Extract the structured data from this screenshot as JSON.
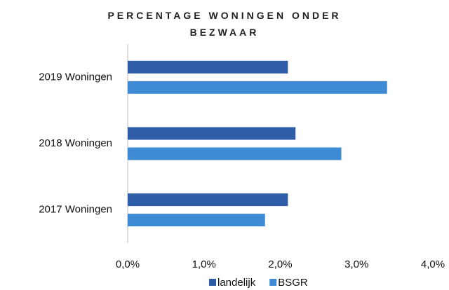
{
  "chart_data": {
    "type": "bar",
    "orientation": "horizontal",
    "title": "PERCENTAGE WONINGEN ONDER BEZWAAR",
    "categories": [
      "2019 Woningen",
      "2018 Woningen",
      "2017 Woningen"
    ],
    "series": [
      {
        "name": "landelijk",
        "color": "#2f5ea8",
        "values": [
          2.1,
          2.2,
          2.1
        ]
      },
      {
        "name": "BSGR",
        "color": "#3e8ad4",
        "values": [
          3.4,
          2.8,
          1.8
        ]
      }
    ],
    "xlim": [
      0,
      4
    ],
    "xticks": [
      {
        "value": 0,
        "label": "0,0%"
      },
      {
        "value": 1,
        "label": "1,0%"
      },
      {
        "value": 2,
        "label": "2,0%"
      },
      {
        "value": 3,
        "label": "3,0%"
      },
      {
        "value": 4,
        "label": "4,0%"
      }
    ],
    "legend": "bottom",
    "grid": false
  }
}
